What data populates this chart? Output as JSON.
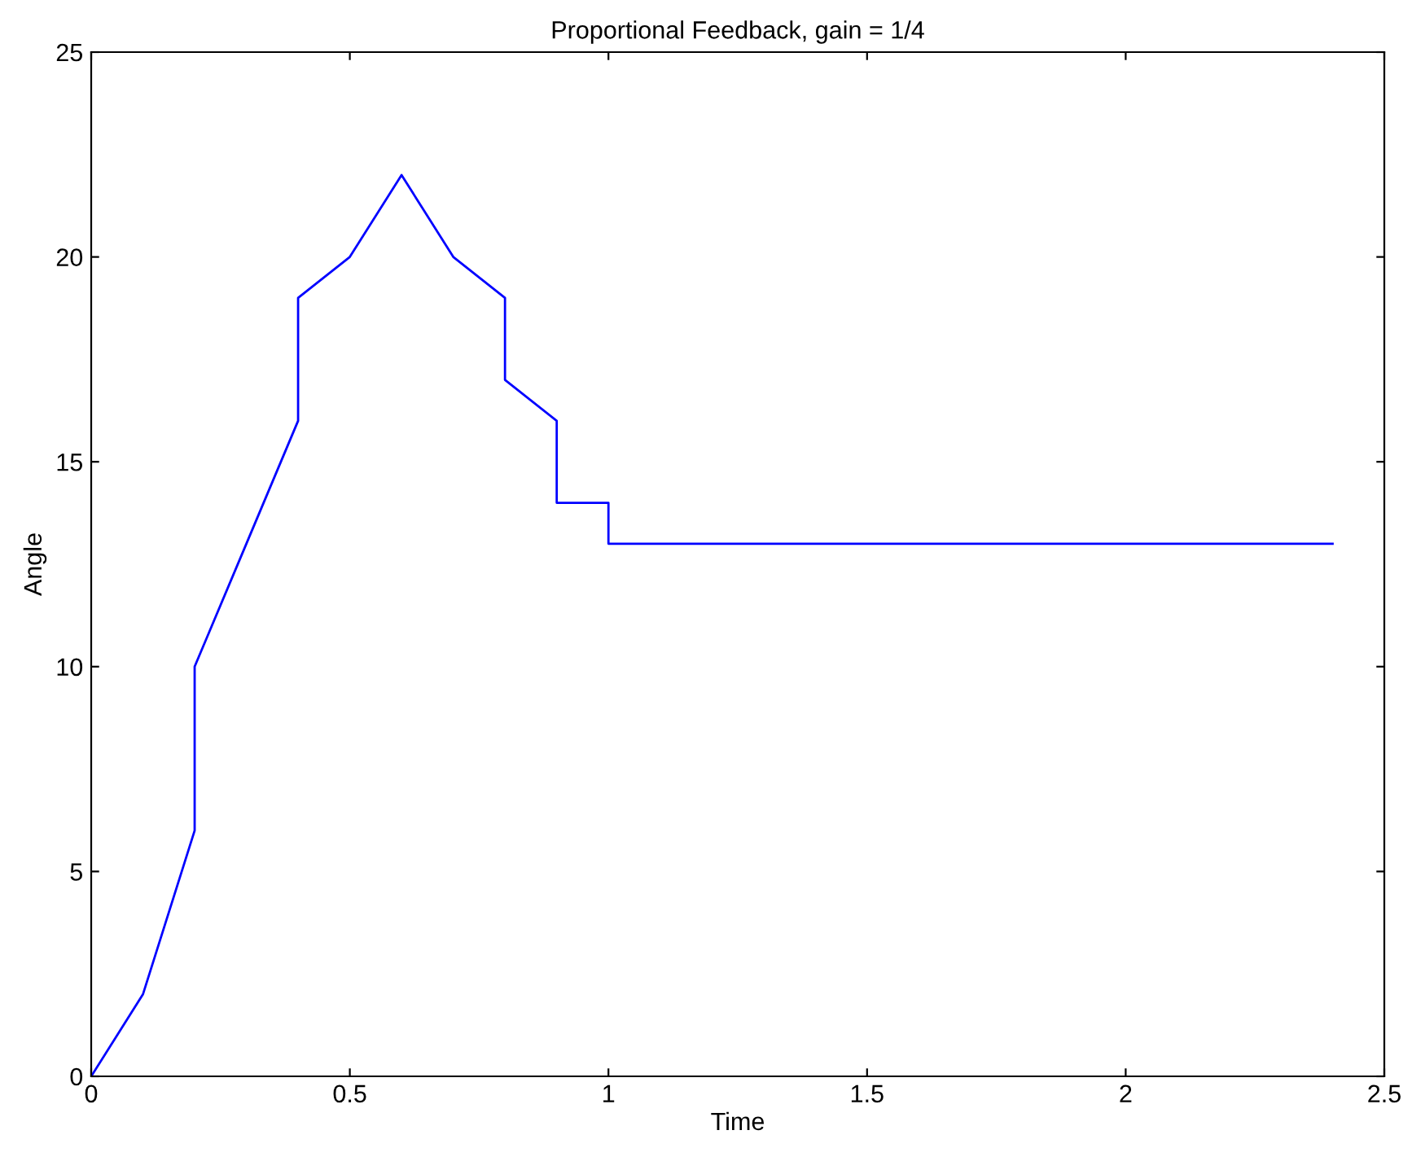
{
  "chart_data": {
    "type": "line",
    "title": "Proportional Feedback, gain = 1/4",
    "xlabel": "Time",
    "ylabel": "Angle",
    "series": [
      {
        "color": "#0000ff",
        "x": [
          0,
          0.1,
          0.2,
          0.2,
          0.3,
          0.4,
          0.4,
          0.5,
          0.6,
          0.7,
          0.8,
          0.8,
          0.9,
          0.9,
          1.0,
          1.0,
          2.4
        ],
        "values": [
          0,
          2,
          6,
          10,
          13,
          16,
          19,
          20,
          22,
          20,
          19,
          17,
          16,
          14,
          14,
          13,
          13
        ]
      }
    ],
    "xlim": [
      0,
      2.5
    ],
    "ylim": [
      0,
      25
    ],
    "xticks": [
      0,
      0.5,
      1,
      1.5,
      2,
      2.5
    ],
    "yticks": [
      0,
      5,
      10,
      15,
      20,
      25
    ],
    "grid": false,
    "marker": "none",
    "line_style": "solid"
  }
}
